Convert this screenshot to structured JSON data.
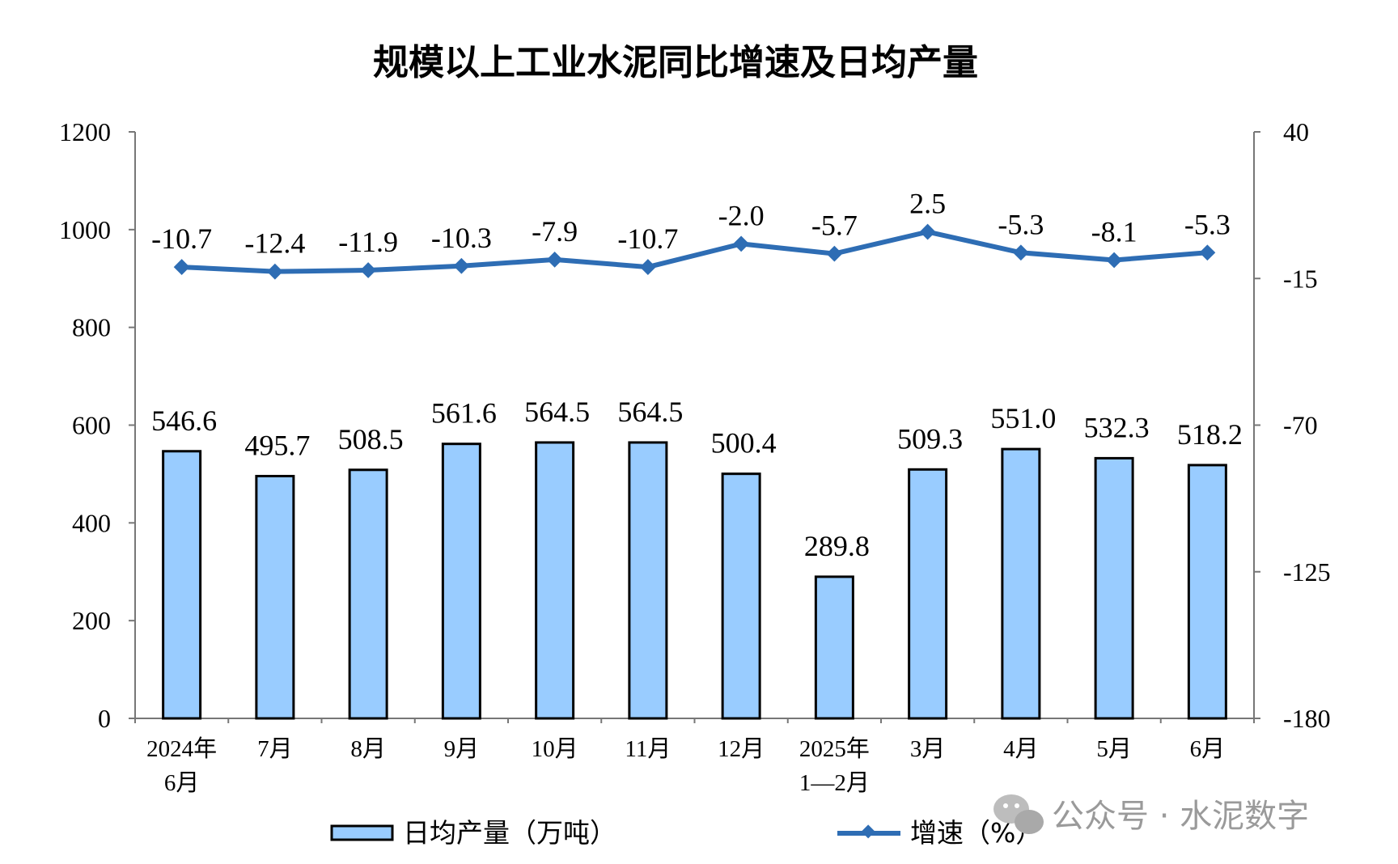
{
  "chart_data": {
    "type": "bar",
    "title": "规模以上工业水泥同比增速及日均产量",
    "categories": [
      [
        "2024年",
        "6月"
      ],
      [
        "7月"
      ],
      [
        "8月"
      ],
      [
        "9月"
      ],
      [
        "10月"
      ],
      [
        "11月"
      ],
      [
        "12月"
      ],
      [
        "2025年",
        "1—2月"
      ],
      [
        "3月"
      ],
      [
        "4月"
      ],
      [
        "5月"
      ],
      [
        "6月"
      ]
    ],
    "series": [
      {
        "name": "日均产量（万吨）",
        "type": "bar",
        "axis": "left",
        "values": [
          546.6,
          495.7,
          508.5,
          561.6,
          564.5,
          564.5,
          500.4,
          289.8,
          509.3,
          551.0,
          532.3,
          518.2
        ],
        "labels": [
          "546.6",
          "495.7",
          "508.5",
          "561.6",
          "564.5",
          "564.5",
          "500.4",
          "289.8",
          "509.3",
          "551.0",
          "532.3",
          "518.2"
        ],
        "color": "#99ccff"
      },
      {
        "name": "增速（%）",
        "type": "line",
        "axis": "right",
        "values": [
          -10.7,
          -12.4,
          -11.9,
          -10.3,
          -7.9,
          -10.7,
          -2.0,
          -5.7,
          2.5,
          -5.3,
          -8.1,
          -5.3
        ],
        "labels": [
          "-10.7",
          "-12.4",
          "-11.9",
          "-10.3",
          "-7.9",
          "-10.7",
          "-2.0",
          "-5.7",
          "2.5",
          "-5.3",
          "-8.1",
          "-5.3"
        ],
        "color": "#2e6db4"
      }
    ],
    "ylim_left": [
      0,
      1200
    ],
    "yticks_left": [
      "0",
      "200",
      "400",
      "600",
      "800",
      "1000",
      "1200"
    ],
    "ylim_right": [
      -180,
      40
    ],
    "yticks_right": [
      "-180",
      "-125",
      "-70",
      "-15",
      "40"
    ],
    "grid": false,
    "legend_position": "bottom"
  },
  "watermark": "公众号 · 水泥数字"
}
